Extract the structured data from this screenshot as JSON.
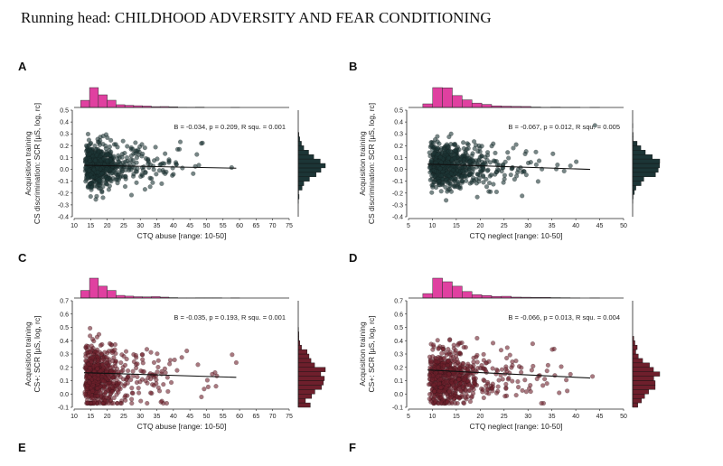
{
  "running_head": "Running head: CHILDHOOD ADVERSITY AND FEAR CONDITIONING",
  "panel_letters": [
    "A",
    "B",
    "C",
    "D",
    "E",
    "F"
  ],
  "chart_data": [
    {
      "id": "A",
      "type": "scatter",
      "xlabel": "CTQ abuse [range: 10-50]",
      "ylabel_lines": [
        "Acquisition training",
        "CS discrimination: SCR [µS, log, rc]"
      ],
      "annotation": "B = -0.034, p = 0.209, R squ. = 0.001",
      "xlim": [
        10,
        75
      ],
      "xticks": [
        10,
        15,
        20,
        25,
        30,
        35,
        40,
        45,
        50,
        55,
        60,
        65,
        70,
        75
      ],
      "ylim": [
        -0.4,
        0.5
      ],
      "yticks": [
        -0.4,
        -0.3,
        -0.2,
        -0.1,
        0.0,
        0.1,
        0.2,
        0.3,
        0.4,
        0.5
      ],
      "color": "#1c3536",
      "regression": {
        "x": [
          13,
          59
        ],
        "y": [
          0.035,
          0.01
        ]
      },
      "x_distribution": {
        "mode": 15,
        "min": 13,
        "max": 59,
        "skew": "right"
      },
      "y_distribution": {
        "center": 0.03,
        "spread": 0.12
      },
      "hist_color": "#e040a0"
    },
    {
      "id": "B",
      "type": "scatter",
      "xlabel": "CTQ neglect [range: 10-50]",
      "ylabel_lines": [
        "Acquisition training",
        "CS discrimination: SCR [µS, log, rc]"
      ],
      "annotation": "B = -0.067, p = 0.012, R squ. = 0.005",
      "xlim": [
        5,
        50
      ],
      "xticks": [
        5,
        10,
        15,
        20,
        25,
        30,
        35,
        40,
        45,
        50
      ],
      "ylim": [
        -0.4,
        0.5
      ],
      "yticks": [
        -0.4,
        -0.3,
        -0.2,
        -0.1,
        0.0,
        0.1,
        0.2,
        0.3,
        0.4,
        0.5
      ],
      "color": "#1c3536",
      "regression": {
        "x": [
          9,
          43
        ],
        "y": [
          0.045,
          0.0
        ]
      },
      "x_distribution": {
        "mode": 11,
        "min": 9,
        "max": 44,
        "skew": "right"
      },
      "y_distribution": {
        "center": 0.03,
        "spread": 0.12
      },
      "hist_color": "#e040a0"
    },
    {
      "id": "C",
      "type": "scatter",
      "xlabel": "CTQ abuse [range: 10-50]",
      "ylabel_lines": [
        "Acquisition training",
        "CS+: SCR [µS, log, rc]"
      ],
      "annotation": "B = -0.035, p = 0.193, R squ. = 0.001",
      "xlim": [
        10,
        75
      ],
      "xticks": [
        10,
        15,
        20,
        25,
        30,
        35,
        40,
        45,
        50,
        55,
        60,
        65,
        70,
        75
      ],
      "ylim": [
        -0.1,
        0.7
      ],
      "yticks": [
        -0.1,
        0.0,
        0.1,
        0.2,
        0.3,
        0.4,
        0.5,
        0.6,
        0.7
      ],
      "color": "#6e1f2c",
      "regression": {
        "x": [
          13,
          59
        ],
        "y": [
          0.16,
          0.125
        ]
      },
      "x_distribution": {
        "mode": 15,
        "min": 13,
        "max": 59,
        "skew": "right"
      },
      "y_distribution": {
        "center": 0.12,
        "spread": 0.15
      },
      "hist_color": "#e040a0"
    },
    {
      "id": "D",
      "type": "scatter",
      "xlabel": "CTQ neglect [range: 10-50]",
      "ylabel_lines": [
        "Acquisition training",
        "CS+: SCR [µS, log, rc]"
      ],
      "annotation": "B = -0.066, p = 0.013, R squ. = 0.004",
      "xlim": [
        5,
        50
      ],
      "xticks": [
        5,
        10,
        15,
        20,
        25,
        30,
        35,
        40,
        45,
        50
      ],
      "ylim": [
        -0.1,
        0.7
      ],
      "yticks": [
        -0.1,
        0.0,
        0.1,
        0.2,
        0.3,
        0.4,
        0.5,
        0.6,
        0.7
      ],
      "color": "#6e1f2c",
      "regression": {
        "x": [
          9,
          43
        ],
        "y": [
          0.18,
          0.12
        ]
      },
      "x_distribution": {
        "mode": 11,
        "min": 9,
        "max": 44,
        "skew": "right"
      },
      "y_distribution": {
        "center": 0.12,
        "spread": 0.15
      },
      "hist_color": "#e040a0"
    }
  ]
}
